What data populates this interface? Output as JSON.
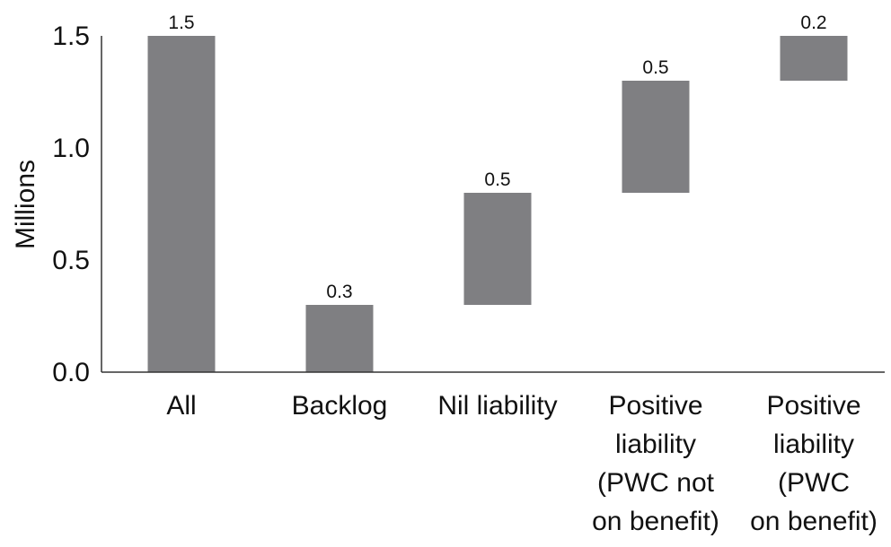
{
  "chart_data": {
    "type": "bar",
    "variant": "waterfall",
    "title": "",
    "xlabel": "",
    "ylabel": "Millions",
    "ylim": [
      0,
      1.5
    ],
    "grid": false,
    "legend": "none",
    "yticks": [
      "0.0",
      "0.5",
      "1.0",
      "1.5"
    ],
    "categories": [
      [
        "All"
      ],
      [
        "Backlog"
      ],
      [
        "Nil liability"
      ],
      [
        "Positive",
        "liability",
        "(PWC not",
        "on benefit)"
      ],
      [
        "Positive",
        "liability",
        "(PWC",
        "on benefit)"
      ]
    ],
    "bars": [
      {
        "base": 0,
        "top": 1.5
      },
      {
        "base": 0,
        "top": 0.3
      },
      {
        "base": 0.3,
        "top": 0.8
      },
      {
        "base": 0.8,
        "top": 1.3
      },
      {
        "base": 1.3,
        "top": 1.5
      }
    ],
    "values": [
      1.5,
      0.3,
      0.5,
      0.5,
      0.2
    ],
    "data_labels": [
      "1.5",
      "0.3",
      "0.5",
      "0.5",
      "0.2"
    ],
    "colors": {
      "bar": "#7f7f82",
      "axis": "#333333",
      "text": "#111111"
    }
  }
}
